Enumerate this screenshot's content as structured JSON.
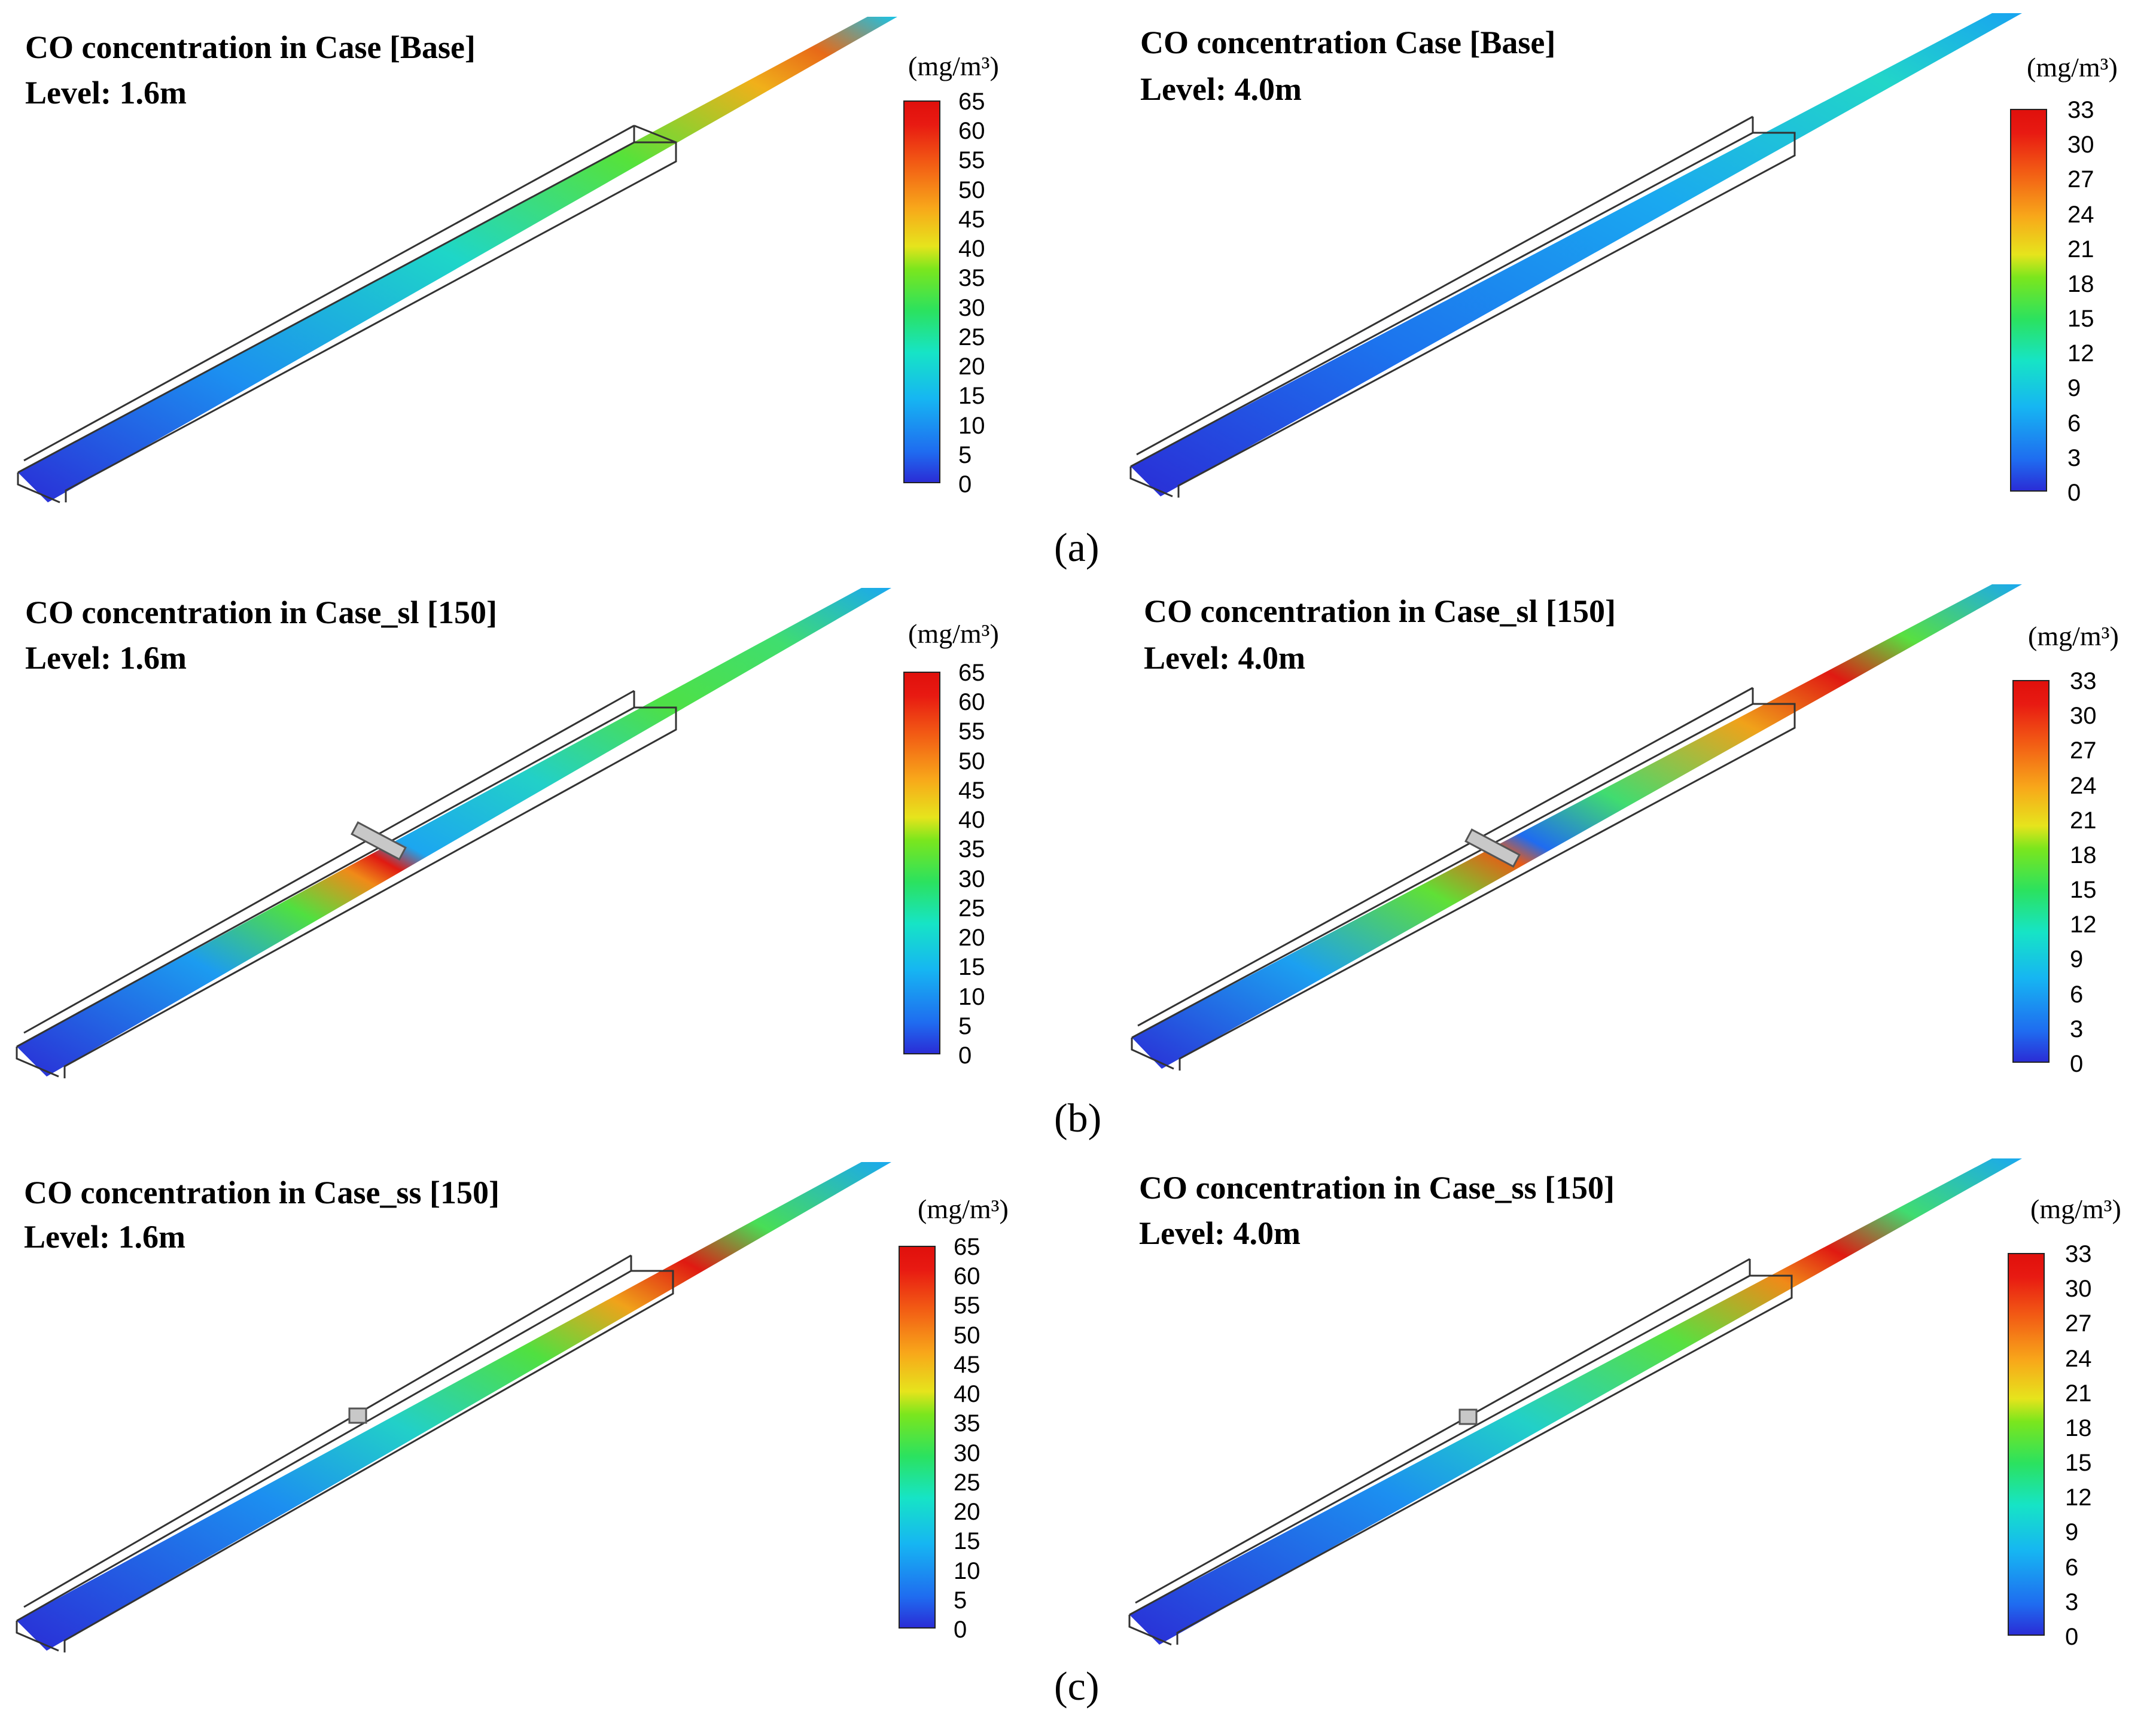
{
  "figure": {
    "colors": {
      "low": "#2a2dd6",
      "mid": "#2be25f",
      "high": "#e0100c"
    },
    "scale_a": [
      "65",
      "60",
      "55",
      "50",
      "45",
      "40",
      "35",
      "30",
      "25",
      "20",
      "15",
      "10",
      "5",
      "0"
    ],
    "scale_b": [
      "33",
      "30",
      "27",
      "24",
      "21",
      "18",
      "15",
      "12",
      "9",
      "6",
      "3",
      "0"
    ],
    "rows": [
      {
        "label": "(a)",
        "left": {
          "title": "CO concentration in Case [Base]",
          "level": "Level: 1.6m",
          "units": "(mg/m³)"
        },
        "right": {
          "title": "CO concentration Case [Base]",
          "level": "Level: 4.0m",
          "units": "(mg/m³)"
        }
      },
      {
        "label": "(b)",
        "left": {
          "title": "CO concentration in Case_sl [150]",
          "level": "Level: 1.6m",
          "units": "(mg/m³)"
        },
        "right": {
          "title": "CO concentration in Case_sl [150]",
          "level": "Level: 4.0m",
          "units": "(mg/m³)"
        }
      },
      {
        "label": "(c)",
        "left": {
          "title": "CO concentration in Case_ss [150]",
          "level": "Level: 1.6m",
          "units": "(mg/m³)"
        },
        "right": {
          "title": "CO concentration in Case_ss [150]",
          "level": "Level: 4.0m",
          "units": "(mg/m³)"
        }
      }
    ]
  }
}
